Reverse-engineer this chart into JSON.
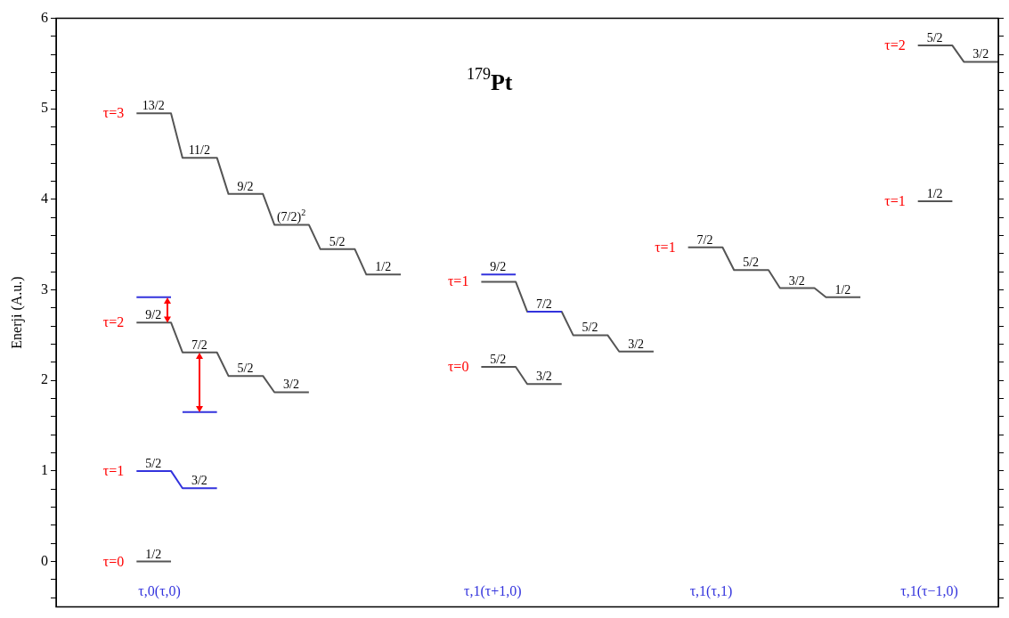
{
  "chart_data": {
    "type": "line",
    "title": "$^{179}$Pt",
    "ylabel": "Enerji (A.u.)",
    "legend": false,
    "grid": false,
    "marker": "none",
    "categories": [
      null,
      null,
      null,
      null,
      null,
      null,
      null,
      null,
      null,
      "τ,0(τ,0)",
      null,
      null,
      null,
      null,
      null,
      null,
      null,
      null,
      null,
      null,
      null,
      null,
      null,
      null,
      null,
      null,
      null,
      null,
      null,
      null,
      null,
      null,
      null,
      null,
      null,
      null,
      null,
      null,
      "τ,1(τ+1,0)",
      null,
      null,
      null,
      null,
      null,
      null,
      null,
      null,
      null,
      null,
      null,
      null,
      null,
      null,
      null,
      null,
      null,
      null,
      "τ,1(τ,1)",
      null,
      null,
      null,
      null,
      null,
      null,
      null,
      null,
      null,
      null,
      null,
      null,
      null,
      null,
      null,
      null,
      null,
      null,
      "τ,1(τ−1,0)",
      null,
      null,
      null,
      null,
      null,
      null
    ],
    "ylim": [
      -0.5,
      6
    ],
    "yticks": [
      {
        "value": -0.4,
        "label": null
      },
      {
        "value": -0.2,
        "label": null
      },
      0,
      {
        "value": 0.2,
        "label": null
      },
      {
        "value": 0.4,
        "label": null
      },
      {
        "value": 0.6,
        "label": null
      },
      {
        "value": 0.8,
        "label": null
      },
      1,
      {
        "value": 1.2,
        "label": null
      },
      {
        "value": 1.4,
        "label": null
      },
      {
        "value": 1.6,
        "label": null
      },
      {
        "value": 1.8,
        "label": null
      },
      2,
      {
        "value": 2.2,
        "label": null
      },
      {
        "value": 2.4,
        "label": null
      },
      {
        "value": 2.6,
        "label": null
      },
      {
        "value": 2.8,
        "label": null
      },
      3,
      {
        "value": 3.2,
        "label": null
      },
      {
        "value": 3.4,
        "label": null
      },
      {
        "value": 3.6,
        "label": null
      },
      {
        "value": 3.8,
        "label": null
      },
      4,
      {
        "value": 4.2,
        "label": null
      },
      {
        "value": 4.4,
        "label": null
      },
      {
        "value": 4.6,
        "label": null
      },
      {
        "value": 4.8,
        "label": null
      },
      5,
      {
        "value": 5.2,
        "label": null
      },
      {
        "value": 5.4,
        "label": null
      },
      {
        "value": 5.6,
        "label": null
      },
      {
        "value": 5.8,
        "label": null
      },
      6
    ],
    "series": [
      {
        "name": "τ=3",
        "color": "#555555",
        "values": [
          null,
          null,
          null,
          null,
          null,
          null,
          null,
          4.95,
          4.95,
          4.95,
          4.95,
          4.46,
          4.46,
          4.46,
          4.46,
          4.06,
          4.06,
          4.06,
          4.06,
          3.72,
          3.72,
          3.72,
          3.72,
          3.45,
          3.45,
          3.45,
          3.45,
          3.17,
          3.17,
          3.17,
          3.17,
          null,
          null,
          null,
          null,
          null,
          null,
          null,
          null,
          null,
          null,
          null,
          null,
          null,
          null,
          null,
          null,
          null,
          null,
          null,
          null,
          null,
          null,
          null,
          null,
          null,
          null,
          null,
          null,
          null,
          null,
          null,
          null,
          null,
          null,
          null,
          null,
          null,
          null,
          null,
          null,
          null,
          null,
          null,
          null,
          null,
          null,
          null,
          null,
          null,
          null,
          null,
          null
        ]
      },
      {
        "name": "τ=2",
        "color": "#555555",
        "values": [
          null,
          null,
          null,
          null,
          null,
          null,
          null,
          2.64,
          2.64,
          2.64,
          2.64,
          2.31,
          2.31,
          2.31,
          2.31,
          2.05,
          2.05,
          2.05,
          2.05,
          1.87,
          1.87,
          1.87,
          1.87,
          null,
          null,
          null,
          null,
          null,
          null,
          null,
          null,
          null,
          null,
          null,
          null,
          null,
          null,
          null,
          null,
          null,
          null,
          null,
          null,
          null,
          null,
          null,
          null,
          null,
          null,
          null,
          null,
          null,
          null,
          null,
          null,
          null,
          null,
          null,
          null,
          null,
          null,
          null,
          null,
          null,
          null,
          null,
          null,
          null,
          null,
          null,
          null,
          null,
          null,
          null,
          null,
          null,
          null,
          null,
          null,
          null,
          null,
          null,
          null
        ]
      },
      {
        "name": "τ=1",
        "color": "#3333dd",
        "values": [
          null,
          null,
          null,
          null,
          null,
          null,
          null,
          1.0,
          1.0,
          1.0,
          1.0,
          0.81,
          0.81,
          0.81,
          0.81,
          null,
          null,
          null,
          null,
          null,
          null,
          null,
          null,
          null,
          null,
          null,
          null,
          null,
          null,
          null,
          null,
          null,
          null,
          null,
          null,
          null,
          null,
          null,
          null,
          null,
          null,
          null,
          null,
          null,
          null,
          null,
          null,
          null,
          null,
          null,
          null,
          null,
          null,
          null,
          null,
          null,
          null,
          null,
          null,
          null,
          null,
          null,
          null,
          null,
          null,
          null,
          null,
          null,
          null,
          null,
          null,
          null,
          null,
          null,
          null,
          null,
          null,
          null,
          null,
          null,
          null,
          null,
          null
        ]
      },
      {
        "name": "τ=0",
        "color": "#555555",
        "values": [
          null,
          null,
          null,
          null,
          null,
          null,
          null,
          0,
          0,
          0,
          0,
          null,
          null,
          null,
          null,
          null,
          null,
          null,
          null,
          null,
          null,
          null,
          null,
          null,
          null,
          null,
          null,
          null,
          null,
          null,
          null,
          null,
          null,
          null,
          null,
          null,
          null,
          null,
          null,
          null,
          null,
          null,
          null,
          null,
          null,
          null,
          null,
          null,
          null,
          null,
          null,
          null,
          null,
          null,
          null,
          null,
          null,
          null,
          null,
          null,
          null,
          null,
          null,
          null,
          null,
          null,
          null,
          null,
          null,
          null,
          null,
          null,
          null,
          null,
          null,
          null,
          null,
          null,
          null,
          null,
          null,
          null,
          null
        ]
      },
      {
        "name": "τ=1",
        "color": "#555555",
        "values": [
          null,
          null,
          null,
          null,
          null,
          null,
          null,
          null,
          null,
          null,
          null,
          null,
          null,
          null,
          null,
          null,
          null,
          null,
          null,
          null,
          null,
          null,
          null,
          null,
          null,
          null,
          null,
          null,
          null,
          null,
          null,
          null,
          null,
          null,
          null,
          null,
          null,
          3.09,
          3.09,
          3.09,
          3.09,
          2.76,
          2.76,
          2.76,
          2.76,
          2.5,
          2.5,
          2.5,
          2.5,
          2.32,
          2.32,
          2.32,
          2.32,
          null,
          null,
          null,
          null,
          null,
          null,
          null,
          null,
          null,
          null,
          null,
          null,
          null,
          null,
          null,
          null,
          null,
          null,
          null,
          null,
          null,
          null,
          null,
          null,
          null,
          null,
          null,
          null,
          null,
          null
        ]
      },
      {
        "color": "#3333dd",
        "values": [
          null,
          null,
          null,
          null,
          null,
          null,
          null,
          null,
          null,
          null,
          null,
          null,
          null,
          null,
          null,
          null,
          null,
          null,
          null,
          null,
          null,
          null,
          null,
          null,
          null,
          null,
          null,
          null,
          null,
          null,
          null,
          null,
          null,
          null,
          null,
          null,
          null,
          3.17,
          3.17,
          3.17,
          3.17,
          null,
          null,
          null,
          null,
          null,
          null,
          null,
          null,
          null,
          null,
          null,
          null,
          null,
          null,
          null,
          null,
          null,
          null,
          null,
          null,
          null,
          null,
          null,
          null,
          null,
          null,
          null,
          null,
          null,
          null,
          null,
          null,
          null,
          null,
          null,
          null,
          null,
          null,
          null,
          null,
          null,
          null
        ]
      },
      {
        "color": "#3333dd",
        "values": [
          null,
          null,
          null,
          null,
          null,
          null,
          null,
          null,
          null,
          null,
          null,
          null,
          null,
          null,
          null,
          null,
          null,
          null,
          null,
          null,
          null,
          null,
          null,
          null,
          null,
          null,
          null,
          null,
          null,
          null,
          null,
          null,
          null,
          null,
          null,
          null,
          null,
          null,
          null,
          null,
          null,
          2.76,
          2.76,
          2.76,
          2.76,
          null,
          null,
          null,
          null,
          null,
          null,
          null,
          null,
          null,
          null,
          null,
          null,
          null,
          null,
          null,
          null,
          null,
          null,
          null,
          null,
          null,
          null,
          null,
          null,
          null,
          null,
          null,
          null,
          null,
          null,
          null,
          null,
          null,
          null,
          null,
          null,
          null,
          null
        ]
      },
      {
        "name": "τ=0",
        "color": "#555555",
        "values": [
          null,
          null,
          null,
          null,
          null,
          null,
          null,
          null,
          null,
          null,
          null,
          null,
          null,
          null,
          null,
          null,
          null,
          null,
          null,
          null,
          null,
          null,
          null,
          null,
          null,
          null,
          null,
          null,
          null,
          null,
          null,
          null,
          null,
          null,
          null,
          null,
          null,
          2.15,
          2.15,
          2.15,
          2.15,
          1.96,
          1.96,
          1.96,
          1.96,
          null,
          null,
          null,
          null,
          null,
          null,
          null,
          null,
          null,
          null,
          null,
          null,
          null,
          null,
          null,
          null,
          null,
          null,
          null,
          null,
          null,
          null,
          null,
          null,
          null,
          null,
          null,
          null,
          null,
          null,
          null,
          null,
          null,
          null,
          null,
          null,
          null,
          null
        ]
      },
      {
        "name": "τ=1",
        "color": "#555555",
        "values": [
          null,
          null,
          null,
          null,
          null,
          null,
          null,
          null,
          null,
          null,
          null,
          null,
          null,
          null,
          null,
          null,
          null,
          null,
          null,
          null,
          null,
          null,
          null,
          null,
          null,
          null,
          null,
          null,
          null,
          null,
          null,
          null,
          null,
          null,
          null,
          null,
          null,
          null,
          null,
          null,
          null,
          null,
          null,
          null,
          null,
          null,
          null,
          null,
          null,
          null,
          null,
          null,
          null,
          null,
          null,
          3.47,
          3.47,
          3.47,
          3.47,
          3.22,
          3.22,
          3.22,
          3.22,
          3.02,
          3.02,
          3.02,
          3.02,
          2.92,
          2.92,
          2.92,
          2.92,
          null,
          null,
          null,
          null,
          null,
          null,
          null,
          null,
          null,
          null,
          null,
          null
        ]
      },
      {
        "name": "τ=2",
        "color": "#555555",
        "values": [
          null,
          null,
          null,
          null,
          null,
          null,
          null,
          null,
          null,
          null,
          null,
          null,
          null,
          null,
          null,
          null,
          null,
          null,
          null,
          null,
          null,
          null,
          null,
          null,
          null,
          null,
          null,
          null,
          null,
          null,
          null,
          null,
          null,
          null,
          null,
          null,
          null,
          null,
          null,
          null,
          null,
          null,
          null,
          null,
          null,
          null,
          null,
          null,
          null,
          null,
          null,
          null,
          null,
          null,
          null,
          null,
          null,
          null,
          null,
          null,
          null,
          null,
          null,
          null,
          null,
          null,
          null,
          null,
          null,
          null,
          null,
          null,
          null,
          null,
          null,
          5.7,
          5.7,
          5.7,
          5.7,
          5.52,
          5.52,
          5.52,
          5.52
        ]
      },
      {
        "name": "τ=1",
        "color": "#555555",
        "values": [
          null,
          null,
          null,
          null,
          null,
          null,
          null,
          null,
          null,
          null,
          null,
          null,
          null,
          null,
          null,
          null,
          null,
          null,
          null,
          null,
          null,
          null,
          null,
          null,
          null,
          null,
          null,
          null,
          null,
          null,
          null,
          null,
          null,
          null,
          null,
          null,
          null,
          null,
          null,
          null,
          null,
          null,
          null,
          null,
          null,
          null,
          null,
          null,
          null,
          null,
          null,
          null,
          null,
          null,
          null,
          null,
          null,
          null,
          null,
          null,
          null,
          null,
          null,
          null,
          null,
          null,
          null,
          null,
          null,
          null,
          null,
          null,
          null,
          null,
          null,
          3.98,
          3.98,
          3.98,
          3.98,
          null,
          null,
          null,
          null
        ]
      },
      {
        "color": "#3333dd",
        "values": [
          null,
          null,
          null,
          null,
          null,
          null,
          null,
          2.92,
          2.92,
          2.92,
          2.92,
          null,
          null,
          null,
          null,
          null,
          null,
          null,
          null,
          null,
          null,
          null,
          null,
          null,
          null,
          null,
          null,
          null,
          null,
          null,
          null,
          null,
          null,
          null,
          null,
          null,
          null,
          null,
          null,
          null,
          null,
          null,
          null,
          null,
          null,
          null,
          null,
          null,
          null,
          null,
          null,
          null,
          null,
          null,
          null,
          null,
          null,
          null,
          null,
          null,
          null,
          null,
          null,
          null,
          null,
          null,
          null,
          null,
          null,
          null,
          null,
          null,
          null,
          null,
          null,
          null,
          null,
          null,
          null,
          null,
          null,
          null,
          null
        ]
      },
      {
        "color": "#3333dd",
        "values": [
          null,
          null,
          null,
          null,
          null,
          null,
          null,
          null,
          null,
          null,
          null,
          1.65,
          1.65,
          1.65,
          1.65,
          null,
          null,
          null,
          null,
          null,
          null,
          null,
          null,
          null,
          null,
          null,
          null,
          null,
          null,
          null,
          null,
          null,
          null,
          null,
          null,
          null,
          null,
          null,
          null,
          null,
          null,
          null,
          null,
          null,
          null,
          null,
          null,
          null,
          null,
          null,
          null,
          null,
          null,
          null,
          null,
          null,
          null,
          null,
          null,
          null,
          null,
          null,
          null,
          null,
          null,
          null,
          null,
          null,
          null,
          null,
          null,
          null,
          null,
          null,
          null,
          null,
          null,
          null,
          null,
          null,
          null,
          null,
          null
        ]
      }
    ],
    "annotations": [
      {
        "text": "13/2",
        "y": 4.95
      },
      {
        "text": "11/2",
        "y": 4.46
      },
      {
        "text": "9/2",
        "y": 4.06
      },
      {
        "text": "(7/2)$^{2}$",
        "y": 3.72
      },
      {
        "text": "5/2",
        "y": 3.45
      },
      {
        "text": "1/2",
        "y": 3.17
      },
      {
        "text": "9/2",
        "y": 2.64
      },
      {
        "text": "7/2",
        "y": 2.31
      },
      {
        "text": "5/2",
        "y": 2.05
      },
      {
        "text": "3/2",
        "y": 1.87
      },
      {
        "text": "5/2",
        "y": 1.0
      },
      {
        "text": "3/2",
        "y": 0.81
      },
      {
        "text": "1/2",
        "y": 0
      },
      {
        "text": "9/2",
        "y": 3.17
      },
      {
        "text": "7/2",
        "y": 2.76
      },
      {
        "text": "5/2",
        "y": 2.5
      },
      {
        "text": "3/2",
        "y": 2.32
      },
      {
        "text": "5/2",
        "y": 2.15
      },
      {
        "text": "3/2",
        "y": 1.96
      },
      {
        "text": "7/2",
        "y": 3.47
      },
      {
        "text": "5/2",
        "y": 3.22
      },
      {
        "text": "3/2",
        "y": 3.02
      },
      {
        "text": "1/2",
        "y": 2.92
      },
      {
        "text": "5/2",
        "y": 5.7
      },
      {
        "text": "3/2",
        "y": 5.52
      },
      {
        "text": "1/2",
        "y": 3.98
      }
    ]
  }
}
